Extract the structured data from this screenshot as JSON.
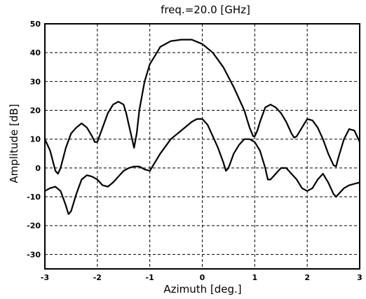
{
  "chart_data": {
    "type": "line",
    "title": "freq.=20.0 [GHz]",
    "xlabel": "Azimuth [deg.]",
    "ylabel": "Amplitude [dB]",
    "xlim": [
      -3,
      3
    ],
    "ylim": [
      -35,
      50
    ],
    "xticks": [
      -3,
      -2,
      -1,
      0,
      1,
      2,
      3
    ],
    "xtick_labels": [
      "-3",
      "-2",
      "-1",
      "0",
      "1",
      "2",
      "3"
    ],
    "yticks": [
      50,
      40,
      30,
      20,
      10,
      0,
      -10,
      -20,
      -30
    ],
    "ytick_labels": [
      "50",
      "40",
      "30",
      "20",
      "10",
      "0",
      "-10",
      "-20",
      "-30"
    ],
    "grid": true,
    "series": [
      {
        "color": "#000000",
        "x": [
          -3.0,
          -2.9,
          -2.8,
          -2.75,
          -2.7,
          -2.6,
          -2.5,
          -2.4,
          -2.3,
          -2.2,
          -2.1,
          -2.05,
          -2.0,
          -1.9,
          -1.8,
          -1.7,
          -1.6,
          -1.5,
          -1.45,
          -1.4,
          -1.35,
          -1.3,
          -1.25,
          -1.2,
          -1.1,
          -1.0,
          -0.9,
          -0.8,
          -0.6,
          -0.4,
          -0.2,
          0.0,
          0.2,
          0.4,
          0.6,
          0.8,
          0.9,
          0.97,
          1.0,
          1.05,
          1.1,
          1.2,
          1.3,
          1.4,
          1.5,
          1.6,
          1.7,
          1.75,
          1.8,
          1.9,
          2.0,
          2.1,
          2.2,
          2.3,
          2.4,
          2.5,
          2.55,
          2.6,
          2.7,
          2.8,
          2.9,
          3.0
        ],
        "y": [
          10,
          6,
          -1,
          -2,
          0,
          7,
          12,
          14,
          15.5,
          14,
          11,
          9,
          9,
          14,
          19,
          22,
          23,
          22,
          19,
          15,
          11,
          7,
          12,
          20,
          30,
          36,
          39,
          42,
          44,
          44.5,
          44.5,
          43,
          40,
          35,
          28,
          20,
          14,
          11,
          11,
          13,
          16,
          21,
          22,
          21,
          19,
          16,
          12,
          10.5,
          11,
          14,
          17,
          16.5,
          14,
          10,
          5,
          1,
          0.5,
          4,
          10,
          13.5,
          13,
          9
        ]
      },
      {
        "color": "#000000",
        "x": [
          -3.0,
          -2.9,
          -2.8,
          -2.7,
          -2.6,
          -2.55,
          -2.5,
          -2.4,
          -2.3,
          -2.2,
          -2.1,
          -2.0,
          -1.9,
          -1.8,
          -1.7,
          -1.6,
          -1.5,
          -1.4,
          -1.3,
          -1.2,
          -1.1,
          -1.0,
          -0.9,
          -0.8,
          -0.6,
          -0.4,
          -0.2,
          -0.1,
          0.0,
          0.1,
          0.2,
          0.3,
          0.4,
          0.45,
          0.5,
          0.6,
          0.7,
          0.8,
          0.9,
          1.0,
          1.1,
          1.2,
          1.25,
          1.3,
          1.4,
          1.5,
          1.6,
          1.7,
          1.8,
          1.9,
          2.0,
          2.1,
          2.2,
          2.3,
          2.4,
          2.5,
          2.55,
          2.6,
          2.7,
          2.8,
          2.9,
          3.0
        ],
        "y": [
          -8,
          -7,
          -6.5,
          -8,
          -13,
          -16,
          -15,
          -9,
          -4,
          -2.5,
          -3,
          -4,
          -6,
          -6.5,
          -5,
          -3,
          -1,
          0,
          0.5,
          0.5,
          -0.5,
          -1,
          2,
          5,
          10,
          13,
          16,
          17,
          17,
          15,
          11,
          7,
          2,
          -1,
          0,
          5,
          8,
          10,
          10,
          9,
          6,
          0,
          -4,
          -4,
          -2,
          0,
          0,
          -2,
          -4,
          -7,
          -8,
          -7,
          -4,
          -2,
          -5,
          -9,
          -10,
          -9,
          -7,
          -6,
          -5.5,
          -5
        ]
      }
    ]
  }
}
